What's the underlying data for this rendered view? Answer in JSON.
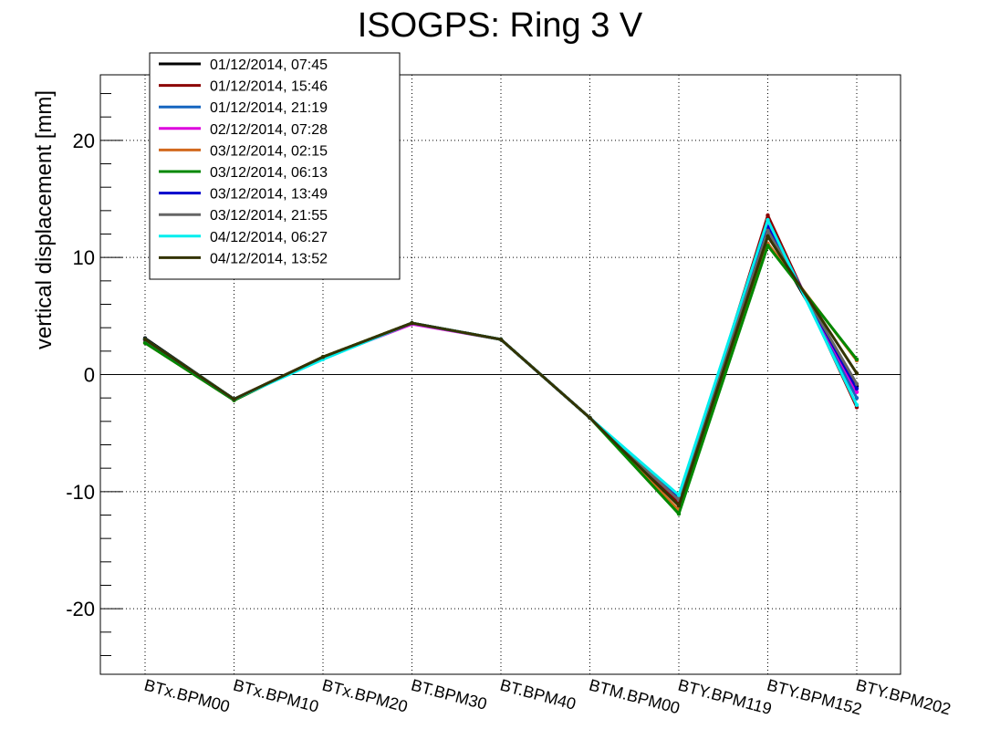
{
  "chart_data": {
    "type": "line",
    "title": "ISOGPS: Ring 3 V",
    "xlabel": "",
    "ylabel": "vertical displacement [mm]",
    "ylim": [
      -25.6,
      25.6
    ],
    "yticks": [
      -20,
      -10,
      0,
      10,
      20
    ],
    "ytick_labels": [
      "-20",
      "-10",
      "0",
      "10",
      "20"
    ],
    "grid": true,
    "zero_line": true,
    "legend_position": "top-left",
    "categories": [
      "BTx.BPM00",
      "BTx.BPM10",
      "BTx.BPM20",
      "BT.BPM30",
      "BT.BPM40",
      "BTM.BPM00",
      "BTY.BPM119",
      "BTY.BPM152",
      "BTY.BPM202"
    ],
    "series": [
      {
        "name": "01/12/2014, 07:45",
        "color": "#000000",
        "values": [
          3.1,
          -2.1,
          1.5,
          4.4,
          3.0,
          -3.7,
          -10.8,
          12.0,
          -1.0
        ]
      },
      {
        "name": "01/12/2014, 15:46",
        "color": "#8b0000",
        "values": [
          3.0,
          -2.1,
          1.5,
          4.4,
          3.0,
          -3.7,
          -11.0,
          13.6,
          -2.8
        ]
      },
      {
        "name": "01/12/2014, 21:19",
        "color": "#1565c0",
        "values": [
          3.0,
          -2.1,
          1.4,
          4.4,
          3.0,
          -3.7,
          -10.5,
          13.0,
          -2.0
        ]
      },
      {
        "name": "02/12/2014, 07:28",
        "color": "#dd00dd",
        "values": [
          2.9,
          -2.1,
          1.4,
          4.3,
          3.0,
          -3.7,
          -10.7,
          12.8,
          -1.5
        ]
      },
      {
        "name": "03/12/2014, 02:15",
        "color": "#d2691e",
        "values": [
          2.7,
          -2.2,
          1.5,
          4.4,
          3.0,
          -3.7,
          -11.6,
          11.2,
          1.2
        ]
      },
      {
        "name": "03/12/2014, 06:13",
        "color": "#008800",
        "values": [
          2.7,
          -2.2,
          1.5,
          4.4,
          3.0,
          -3.7,
          -11.9,
          11.0,
          1.3
        ]
      },
      {
        "name": "03/12/2014, 13:49",
        "color": "#0000cc",
        "values": [
          3.0,
          -2.1,
          1.4,
          4.4,
          3.0,
          -3.7,
          -10.6,
          12.6,
          -1.2
        ]
      },
      {
        "name": "03/12/2014, 21:55",
        "color": "#666666",
        "values": [
          3.0,
          -2.1,
          1.4,
          4.4,
          3.0,
          -3.7,
          -10.7,
          12.3,
          -0.8
        ]
      },
      {
        "name": "04/12/2014, 06:27",
        "color": "#00eeee",
        "values": [
          3.0,
          -2.1,
          1.3,
          4.4,
          3.0,
          -3.7,
          -10.3,
          13.2,
          -2.6
        ]
      },
      {
        "name": "04/12/2014, 13:52",
        "color": "#333300",
        "values": [
          3.0,
          -2.1,
          1.5,
          4.4,
          3.0,
          -3.7,
          -11.2,
          11.8,
          0.1
        ]
      }
    ]
  }
}
